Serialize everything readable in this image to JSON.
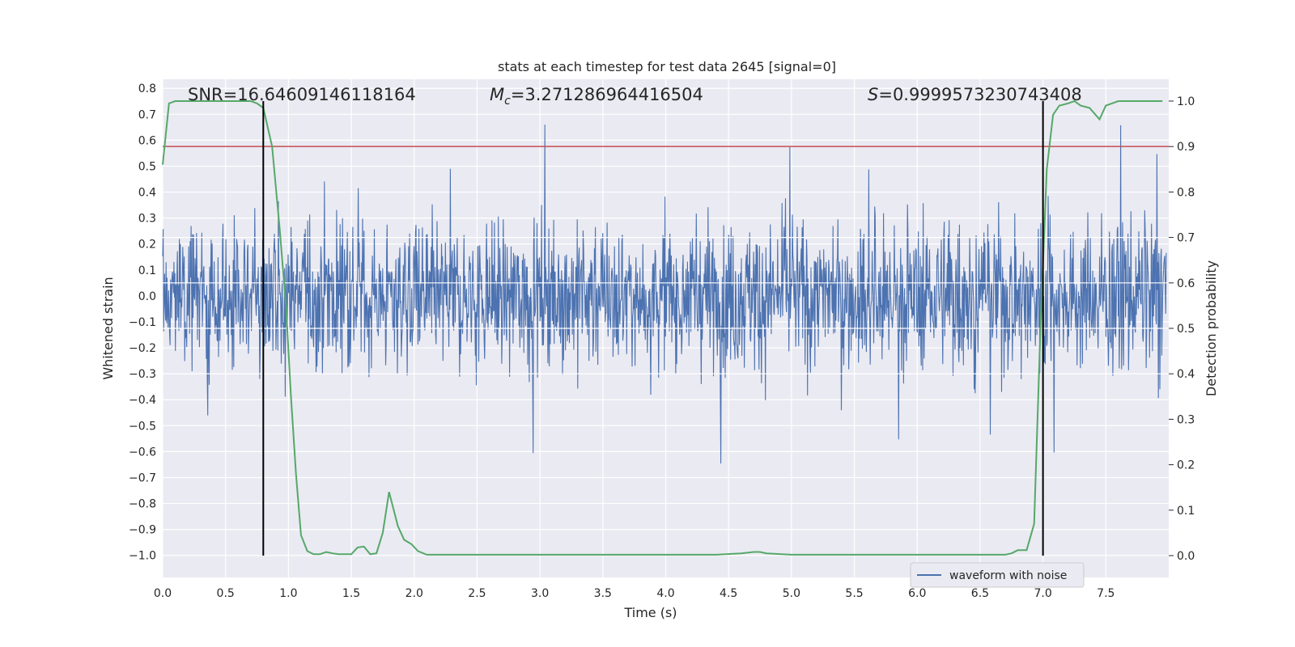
{
  "chart_data": {
    "type": "line",
    "title": "stats at each timestep for test data 2645 [signal=0]",
    "xlabel": "Time (s)",
    "ylabel_left": "Whitened strain",
    "ylabel_right": "Detection probability",
    "xlim": [
      0.0,
      8.0
    ],
    "ylim_left": [
      -1.085,
      0.835
    ],
    "ylim_right": [
      -0.048,
      1.048
    ],
    "grid": true,
    "x_ticks": [
      "0.0",
      "0.5",
      "1.0",
      "1.5",
      "2.0",
      "2.5",
      "3.0",
      "3.5",
      "4.0",
      "4.5",
      "5.0",
      "5.5",
      "6.0",
      "6.5",
      "7.0",
      "7.5"
    ],
    "x_tick_values": [
      0.0,
      0.5,
      1.0,
      1.5,
      2.0,
      2.5,
      3.0,
      3.5,
      4.0,
      4.5,
      5.0,
      5.5,
      6.0,
      6.5,
      7.0,
      7.5
    ],
    "y_left_ticks": [
      "0.8",
      "0.7",
      "0.6",
      "0.5",
      "0.4",
      "0.3",
      "0.2",
      "0.1",
      "0.0",
      "−0.1",
      "−0.2",
      "−0.3",
      "−0.4",
      "−0.5",
      "−0.6",
      "−0.7",
      "−0.8",
      "−0.9",
      "−1.0"
    ],
    "y_left_tick_values": [
      0.8,
      0.7,
      0.6,
      0.5,
      0.4,
      0.3,
      0.2,
      0.1,
      0.0,
      -0.1,
      -0.2,
      -0.3,
      -0.4,
      -0.5,
      -0.6,
      -0.7,
      -0.8,
      -0.9,
      -1.0
    ],
    "y_right_ticks": [
      "1.0",
      "0.9",
      "0.8",
      "0.7",
      "0.6",
      "0.5",
      "0.4",
      "0.3",
      "0.2",
      "0.1",
      "0.0"
    ],
    "y_right_tick_values": [
      1.0,
      0.9,
      0.8,
      0.7,
      0.6,
      0.5,
      0.4,
      0.3,
      0.2,
      0.1,
      0.0
    ],
    "annotations": {
      "snr": "SNR=16.64609146118164",
      "mc_symbol": "M",
      "mc_sub": "c",
      "mc_value": "=3.271286964416504",
      "s_symbol": "S",
      "s_value": "=0.9999573230743408"
    },
    "series": [
      {
        "name": "waveform with noise",
        "axis": "left",
        "color": "#4c72b0",
        "kind": "noise",
        "envelope": [
          -0.62,
          0.62
        ],
        "approx_samples": 2048
      },
      {
        "name": "detection probability",
        "axis": "right",
        "color": "#55a868",
        "x": [
          0.0,
          0.05,
          0.1,
          0.2,
          0.3,
          0.4,
          0.5,
          0.6,
          0.7,
          0.75,
          0.8,
          0.87,
          0.93,
          0.98,
          1.02,
          1.06,
          1.1,
          1.15,
          1.2,
          1.25,
          1.3,
          1.35,
          1.4,
          1.5,
          1.55,
          1.6,
          1.65,
          1.7,
          1.75,
          1.8,
          1.87,
          1.92,
          1.98,
          2.03,
          2.1,
          2.15,
          2.2,
          2.4,
          2.6,
          2.8,
          3.0,
          3.2,
          3.4,
          3.6,
          3.8,
          4.0,
          4.2,
          4.4,
          4.6,
          4.7,
          4.75,
          4.8,
          5.0,
          5.2,
          5.4,
          5.6,
          5.8,
          6.0,
          6.2,
          6.4,
          6.6,
          6.7,
          6.75,
          6.8,
          6.87,
          6.93,
          6.98,
          7.03,
          7.08,
          7.13,
          7.2,
          7.25,
          7.3,
          7.37,
          7.45,
          7.5,
          7.6,
          7.7,
          7.8,
          7.9,
          7.95
        ],
        "values": [
          0.86,
          0.995,
          1.0,
          1.0,
          1.0,
          1.0,
          1.0,
          1.0,
          1.0,
          0.995,
          0.985,
          0.9,
          0.72,
          0.55,
          0.35,
          0.18,
          0.045,
          0.01,
          0.003,
          0.003,
          0.008,
          0.005,
          0.003,
          0.003,
          0.018,
          0.02,
          0.003,
          0.005,
          0.05,
          0.14,
          0.065,
          0.035,
          0.025,
          0.01,
          0.002,
          0.002,
          0.002,
          0.002,
          0.002,
          0.002,
          0.002,
          0.002,
          0.002,
          0.002,
          0.002,
          0.002,
          0.002,
          0.002,
          0.005,
          0.008,
          0.008,
          0.005,
          0.002,
          0.002,
          0.002,
          0.002,
          0.002,
          0.002,
          0.002,
          0.002,
          0.002,
          0.002,
          0.005,
          0.012,
          0.012,
          0.07,
          0.5,
          0.85,
          0.97,
          0.99,
          0.995,
          1.0,
          0.99,
          0.985,
          0.96,
          0.99,
          1.0,
          1.0,
          1.0,
          1.0,
          1.0
        ]
      }
    ],
    "threshold": {
      "axis": "right",
      "value": 0.9,
      "color": "#c44e52"
    },
    "vlines": [
      {
        "x": 0.8,
        "y_from": 0.0,
        "y_to": 1.0,
        "color": "#000000"
      },
      {
        "x": 7.0,
        "y_from": 0.0,
        "y_to": 1.0,
        "color": "#000000"
      }
    ],
    "legend": {
      "location": "lower right",
      "entries": [
        "waveform with noise"
      ]
    }
  }
}
